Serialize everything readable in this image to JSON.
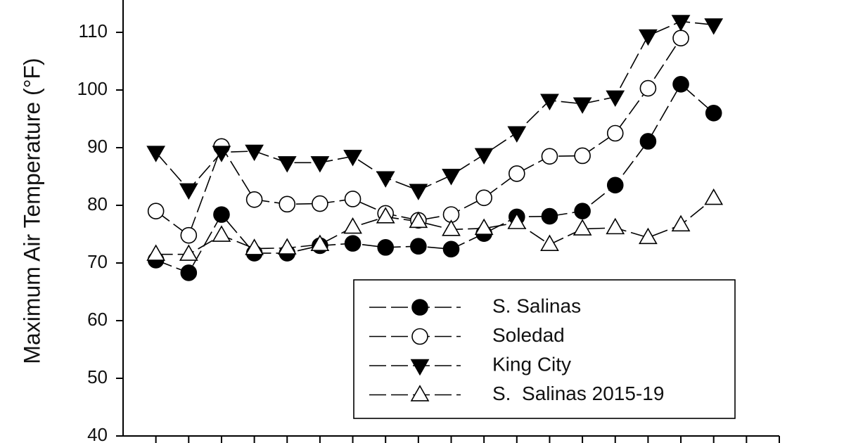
{
  "chart_data": {
    "type": "line",
    "y_label": "Maximum Air Temperature (°F)",
    "categories": [
      null,
      null,
      null,
      null,
      null,
      null,
      null,
      null,
      null,
      null,
      null,
      null,
      null,
      null,
      null,
      null,
      null,
      null
    ],
    "ylim": [
      40,
      115
    ],
    "yticks": [
      40,
      50,
      60,
      70,
      80,
      90,
      100,
      110
    ],
    "series": [
      {
        "name": "S. Salinas",
        "marker": "circle",
        "filled": true,
        "color": "#000000",
        "values": [
          70.5,
          68.3,
          78.4,
          71.7,
          71.7,
          73,
          73.4,
          72.7,
          72.9,
          72.4,
          75.1,
          78,
          78.1,
          79,
          83.5,
          91.1,
          101,
          96
        ]
      },
      {
        "name": "Soledad",
        "marker": "circle",
        "filled": false,
        "color": "#000000",
        "values": [
          79,
          74.8,
          90.2,
          81,
          80.2,
          80.3,
          81.1,
          78.6,
          77.4,
          78.4,
          81.3,
          85.5,
          88.5,
          88.6,
          92.5,
          100.3,
          109,
          null
        ]
      },
      {
        "name": "King City",
        "marker": "triangle-down",
        "filled": true,
        "color": "#000000",
        "values": [
          89.2,
          82.7,
          89.2,
          89.4,
          87.4,
          87.4,
          88.5,
          84.8,
          82.6,
          85.2,
          88.8,
          92.6,
          98.2,
          97.6,
          98.8,
          109.4,
          111.9,
          111.3
        ]
      },
      {
        "name": "S.  Salinas 2015-19",
        "marker": "triangle-up",
        "filled": false,
        "color": "#000000",
        "values": [
          71.5,
          71.5,
          74.8,
          72.5,
          72.6,
          73.2,
          76.2,
          78,
          77.2,
          75.8,
          76,
          77,
          73.2,
          75.9,
          76.1,
          74.4,
          76.6,
          81.2
        ]
      }
    ]
  }
}
